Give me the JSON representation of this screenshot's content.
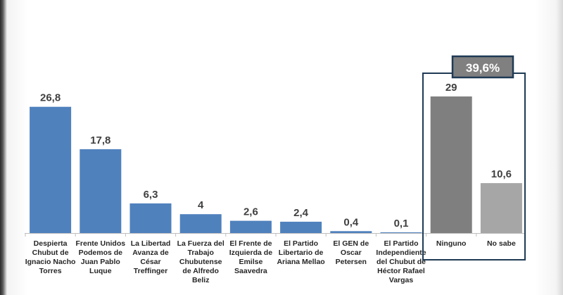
{
  "chart_data": {
    "type": "bar",
    "categories": [
      "Despierta Chubut de Ignacio Nacho Torres",
      "Frente Unidos Podemos de Juan Pablo Luque",
      "La Libertad Avanza de César Treffinger",
      "La Fuerza del Trabajo Chubutense de Alfredo Beliz",
      "El Frente de Izquierda de Emilse Saavedra",
      "El Partido Libertario de Ariana Mellao",
      "El GEN de Oscar Petersen",
      "El Partido Independiente del Chubut de Héctor Rafael Vargas",
      "Ninguno",
      "No sabe"
    ],
    "category_lines": [
      [
        "Despierta",
        "Chubut de",
        "Ignacio Nacho",
        "Torres"
      ],
      [
        "Frente Unidos",
        "Podemos de",
        "Juan Pablo",
        "Luque"
      ],
      [
        "La Libertad",
        "Avanza de",
        "César",
        "Treffinger"
      ],
      [
        "La Fuerza del",
        "Trabajo",
        "Chubutense",
        "de Alfredo",
        "Beliz"
      ],
      [
        "El Frente de",
        "Izquierda de",
        "Emilse",
        "Saavedra"
      ],
      [
        "El Partido",
        "Libertario de",
        "Ariana Mellao"
      ],
      [
        "El GEN de",
        "Oscar",
        "Petersen"
      ],
      [
        "El Partido",
        "Independiente",
        "del Chubut de",
        "Héctor Rafael",
        "Vargas"
      ],
      [
        "Ninguno"
      ],
      [
        "No sabe"
      ]
    ],
    "values": [
      26.8,
      17.8,
      6.3,
      4,
      2.6,
      2.4,
      0.4,
      0.1,
      29,
      10.6
    ],
    "value_labels": [
      "26,8",
      "17,8",
      "6,3",
      "4",
      "2,6",
      "2,4",
      "0,4",
      "0,1",
      "29",
      "10,6"
    ],
    "bar_colors": [
      "#4f81bd",
      "#4f81bd",
      "#4f81bd",
      "#4f81bd",
      "#4f81bd",
      "#4f81bd",
      "#4f81bd",
      "#4f81bd",
      "#7f7f7f",
      "#a6a6a6"
    ],
    "ylim": [
      0,
      29
    ],
    "grid": false,
    "legend": "none",
    "highlight_group": {
      "categories": [
        "Ninguno",
        "No sabe"
      ],
      "label": "39,6%",
      "border_color": "#1f3a55",
      "badge_color": "#808080"
    }
  }
}
